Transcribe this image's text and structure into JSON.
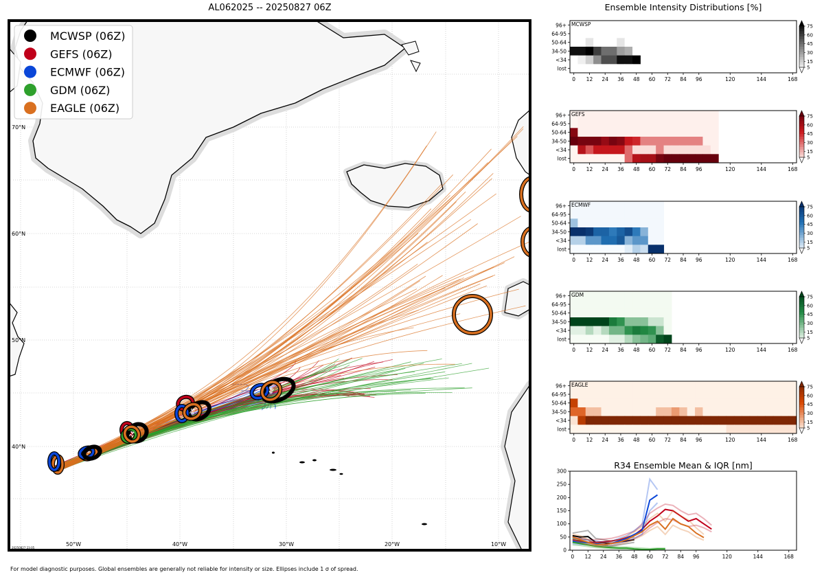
{
  "map": {
    "title": "AL062025 -- 20250827 06Z",
    "stamp": "20250827 23:05",
    "footnote": "For model diagnostic purposes. Global ensembles are generally not reliable for intensity or size. Ellipses include 1 σ of spread.",
    "lon_labels": [
      "50°W",
      "40°W",
      "30°W",
      "20°W",
      "10°W"
    ],
    "lat_labels": [
      "70°N",
      "60°N",
      "50°N",
      "40°N"
    ],
    "legend": [
      {
        "label": "MCWSP (06Z)",
        "color": "#000000"
      },
      {
        "label": "GEFS (06Z)",
        "color": "#c0001a"
      },
      {
        "label": "ECMWF (06Z)",
        "color": "#0a46d8"
      },
      {
        "label": "GDM (06Z)",
        "color": "#2ea02c"
      },
      {
        "label": "EAGLE (06Z)",
        "color": "#d97020"
      }
    ],
    "ellipse_labels": [
      "0",
      "12",
      "24",
      "36",
      "48",
      "72"
    ]
  },
  "chart_data": [
    {
      "type": "heatmap",
      "title": "Ensemble Intensity Distributions [%]",
      "model": "MCWSP",
      "cmap": "Greys",
      "x_hours": [
        0,
        6,
        12,
        18,
        24,
        30,
        36,
        42,
        48
      ],
      "rows": [
        "96+",
        "64-95",
        "50-64",
        "34-50",
        "<34",
        "lost"
      ],
      "colorbar_ticks": [
        5,
        15,
        30,
        45,
        60,
        75
      ],
      "values": [
        [
          0,
          0,
          0,
          0,
          0,
          0,
          0,
          0,
          0
        ],
        [
          0,
          0,
          0,
          0,
          0,
          0,
          0,
          0,
          0
        ],
        [
          0,
          0,
          8,
          0,
          0,
          0,
          8,
          0,
          0
        ],
        [
          75,
          75,
          80,
          60,
          45,
          45,
          30,
          25,
          0
        ],
        [
          0,
          5,
          15,
          35,
          55,
          55,
          75,
          75,
          95
        ],
        [
          0,
          0,
          0,
          0,
          0,
          0,
          0,
          0,
          0
        ]
      ]
    },
    {
      "type": "heatmap",
      "model": "GEFS",
      "cmap": "Reds",
      "x_hours": [
        0,
        6,
        12,
        18,
        24,
        30,
        36,
        42,
        48,
        54,
        60,
        66,
        72,
        78,
        84,
        90,
        96,
        102,
        108
      ],
      "rows": [
        "96+",
        "64-95",
        "50-64",
        "34-50",
        "<34",
        "lost"
      ],
      "colorbar_ticks": [
        5,
        15,
        30,
        45,
        60,
        75
      ],
      "values": [
        [
          0,
          1,
          1,
          1,
          1,
          1,
          1,
          1,
          1,
          1,
          1,
          1,
          1,
          1,
          1,
          1,
          1,
          1,
          1
        ],
        [
          0,
          1,
          1,
          1,
          1,
          1,
          1,
          1,
          1,
          1,
          1,
          1,
          1,
          1,
          1,
          1,
          1,
          1,
          1
        ],
        [
          70,
          1,
          1,
          1,
          1,
          1,
          1,
          1,
          1,
          1,
          1,
          1,
          1,
          1,
          1,
          1,
          1,
          1,
          1
        ],
        [
          80,
          75,
          75,
          75,
          65,
          75,
          70,
          50,
          45,
          25,
          25,
          25,
          25,
          25,
          25,
          25,
          25,
          1,
          1
        ],
        [
          0,
          55,
          35,
          50,
          50,
          50,
          50,
          30,
          5,
          5,
          5,
          25,
          5,
          5,
          5,
          5,
          5,
          5,
          1
        ],
        [
          0,
          0,
          0,
          0,
          0,
          0,
          0,
          30,
          55,
          60,
          60,
          75,
          95,
          95,
          95,
          95,
          95,
          95,
          95
        ]
      ]
    },
    {
      "type": "heatmap",
      "model": "ECMWF",
      "cmap": "Blues",
      "x_hours": [
        0,
        6,
        12,
        18,
        24,
        30,
        36,
        42,
        48,
        54,
        60,
        66
      ],
      "rows": [
        "96+",
        "64-95",
        "50-64",
        "34-50",
        "<34",
        "lost"
      ],
      "colorbar_ticks": [
        5,
        15,
        30,
        45,
        60,
        75
      ],
      "values": [
        [
          1,
          1,
          1,
          1,
          1,
          1,
          1,
          1,
          1,
          1,
          1,
          1
        ],
        [
          1,
          1,
          1,
          1,
          1,
          1,
          1,
          1,
          1,
          1,
          1,
          1
        ],
        [
          20,
          1,
          1,
          1,
          1,
          1,
          1,
          1,
          1,
          1,
          1,
          1
        ],
        [
          95,
          95,
          75,
          55,
          55,
          45,
          55,
          65,
          45,
          25,
          1,
          1
        ],
        [
          15,
          15,
          35,
          35,
          50,
          50,
          60,
          25,
          35,
          35,
          1,
          1
        ],
        [
          0,
          0,
          0,
          0,
          0,
          0,
          0,
          5,
          15,
          10,
          80,
          80
        ]
      ]
    },
    {
      "type": "heatmap",
      "model": "GDM",
      "cmap": "Greens",
      "x_hours": [
        0,
        6,
        12,
        18,
        24,
        30,
        36,
        42,
        48,
        54,
        60,
        66,
        72
      ],
      "rows": [
        "96+",
        "64-95",
        "50-64",
        "34-50",
        "<34",
        "lost"
      ],
      "colorbar_ticks": [
        5,
        15,
        30,
        45,
        60,
        75
      ],
      "values": [
        [
          1,
          1,
          1,
          1,
          1,
          1,
          1,
          1,
          1,
          1,
          1,
          1,
          1
        ],
        [
          1,
          1,
          1,
          1,
          1,
          1,
          1,
          1,
          1,
          1,
          1,
          1,
          1
        ],
        [
          1,
          1,
          1,
          1,
          1,
          1,
          1,
          1,
          1,
          1,
          1,
          1,
          1
        ],
        [
          95,
          95,
          95,
          95,
          95,
          55,
          45,
          25,
          25,
          25,
          10,
          10,
          1
        ],
        [
          5,
          5,
          15,
          5,
          15,
          30,
          30,
          45,
          55,
          50,
          45,
          25,
          1
        ],
        [
          0,
          0,
          0,
          0,
          0,
          5,
          5,
          15,
          25,
          30,
          35,
          70,
          90
        ]
      ]
    },
    {
      "type": "heatmap",
      "model": "EAGLE",
      "cmap": "Oranges",
      "x_hours": [
        0,
        6,
        12,
        18,
        24,
        30,
        36,
        42,
        48,
        54,
        60,
        66,
        72,
        78,
        84,
        90,
        96,
        102,
        108,
        114,
        120,
        126,
        132,
        138,
        144,
        150,
        156,
        162,
        168
      ],
      "rows": [
        "96+",
        "64-95",
        "50-64",
        "34-50",
        "<34",
        "lost"
      ],
      "colorbar_ticks": [
        5,
        15,
        30,
        45,
        60,
        75
      ],
      "values": [
        [
          1,
          1,
          1,
          1,
          1,
          1,
          1,
          1,
          1,
          1,
          1,
          1,
          1,
          1,
          1,
          1,
          1,
          1,
          1,
          1,
          1,
          1,
          1,
          1,
          1,
          1,
          1,
          1,
          1
        ],
        [
          1,
          1,
          1,
          1,
          1,
          1,
          1,
          1,
          1,
          1,
          1,
          1,
          1,
          1,
          1,
          1,
          1,
          1,
          1,
          1,
          1,
          1,
          1,
          1,
          1,
          1,
          1,
          1,
          1
        ],
        [
          55,
          1,
          1,
          1,
          1,
          1,
          1,
          1,
          1,
          1,
          1,
          1,
          1,
          1,
          1,
          1,
          1,
          1,
          1,
          1,
          1,
          1,
          1,
          1,
          1,
          1,
          1,
          1,
          1
        ],
        [
          40,
          40,
          15,
          15,
          1,
          1,
          1,
          1,
          1,
          1,
          1,
          15,
          15,
          25,
          15,
          1,
          15,
          1,
          1,
          1,
          1,
          1,
          1,
          1,
          1,
          1,
          1,
          1,
          1
        ],
        [
          5,
          60,
          90,
          90,
          95,
          95,
          95,
          95,
          95,
          95,
          95,
          95,
          95,
          95,
          95,
          95,
          95,
          95,
          95,
          95,
          95,
          95,
          95,
          95,
          95,
          95,
          95,
          95,
          95
        ],
        [
          0,
          0,
          0,
          0,
          0,
          0,
          0,
          0,
          0,
          0,
          0,
          0,
          0,
          0,
          0,
          0,
          0,
          0,
          0,
          0,
          5,
          5,
          5,
          5,
          5,
          5,
          5,
          5,
          5
        ]
      ]
    },
    {
      "type": "line",
      "title": "R34 Ensemble Mean & IQR [nm]",
      "xlabel": "",
      "ylabel": "",
      "x_ticks": [
        0,
        12,
        24,
        36,
        48,
        60,
        72,
        84,
        96,
        120,
        144,
        168
      ],
      "y_ticks": [
        0,
        50,
        100,
        150,
        200,
        250,
        300
      ],
      "xlim": [
        -2,
        174
      ],
      "ylim": [
        0,
        300
      ],
      "series": [
        {
          "name": "MCWSP",
          "color": "#000000",
          "x": [
            0,
            6,
            12,
            18,
            24,
            30,
            36,
            42,
            48
          ],
          "mean": [
            55,
            50,
            52,
            30,
            28,
            25,
            32,
            35,
            40
          ],
          "lo": [
            45,
            45,
            40,
            20,
            20,
            15,
            20,
            25,
            30
          ],
          "hi": [
            65,
            70,
            75,
            45,
            40,
            35,
            40,
            45,
            50
          ]
        },
        {
          "name": "GEFS",
          "color": "#c0001a",
          "x": [
            0,
            6,
            12,
            18,
            24,
            30,
            36,
            42,
            48,
            54,
            60,
            66,
            72,
            78,
            84,
            90,
            96,
            102,
            108
          ],
          "mean": [
            40,
            35,
            30,
            30,
            32,
            35,
            40,
            48,
            58,
            80,
            110,
            130,
            155,
            150,
            130,
            110,
            120,
            100,
            80
          ],
          "lo": [
            30,
            25,
            22,
            22,
            25,
            28,
            30,
            35,
            45,
            60,
            85,
            105,
            120,
            115,
            100,
            90,
            95,
            85,
            70
          ],
          "hi": [
            50,
            45,
            40,
            40,
            42,
            45,
            52,
            62,
            72,
            100,
            140,
            160,
            175,
            170,
            150,
            135,
            140,
            120,
            95
          ]
        },
        {
          "name": "ECMWF",
          "color": "#0a46d8",
          "x": [
            0,
            6,
            12,
            18,
            24,
            30,
            36,
            42,
            48,
            54,
            60,
            66
          ],
          "mean": [
            35,
            30,
            28,
            25,
            20,
            25,
            35,
            45,
            60,
            75,
            190,
            210
          ],
          "lo": [
            25,
            22,
            20,
            18,
            15,
            18,
            25,
            35,
            45,
            60,
            150,
            180
          ],
          "hi": [
            45,
            40,
            38,
            35,
            30,
            32,
            45,
            55,
            75,
            95,
            270,
            230
          ]
        },
        {
          "name": "GDM",
          "color": "#2ea02c",
          "x": [
            0,
            6,
            12,
            18,
            24,
            30,
            36,
            42,
            48,
            54,
            60,
            66,
            72
          ],
          "mean": [
            30,
            25,
            20,
            15,
            12,
            10,
            8,
            8,
            5,
            3,
            3,
            5,
            5
          ],
          "lo": [
            20,
            18,
            14,
            10,
            8,
            6,
            5,
            4,
            3,
            1,
            1,
            2,
            2
          ],
          "hi": [
            45,
            35,
            28,
            22,
            18,
            14,
            12,
            12,
            10,
            8,
            6,
            8,
            8
          ]
        },
        {
          "name": "EAGLE",
          "color": "#d97020",
          "x": [
            0,
            6,
            12,
            18,
            24,
            30,
            36,
            42,
            48,
            54,
            60,
            66,
            72,
            78,
            84,
            90,
            96,
            102
          ],
          "mean": [
            50,
            40,
            30,
            22,
            20,
            25,
            30,
            40,
            55,
            70,
            95,
            110,
            80,
            120,
            100,
            90,
            65,
            48
          ],
          "lo": [
            40,
            30,
            22,
            15,
            14,
            18,
            22,
            30,
            42,
            55,
            75,
            90,
            60,
            95,
            80,
            70,
            50,
            38
          ],
          "hi": [
            60,
            55,
            40,
            30,
            28,
            32,
            40,
            52,
            70,
            90,
            120,
            140,
            110,
            150,
            130,
            115,
            85,
            60
          ]
        }
      ]
    }
  ]
}
